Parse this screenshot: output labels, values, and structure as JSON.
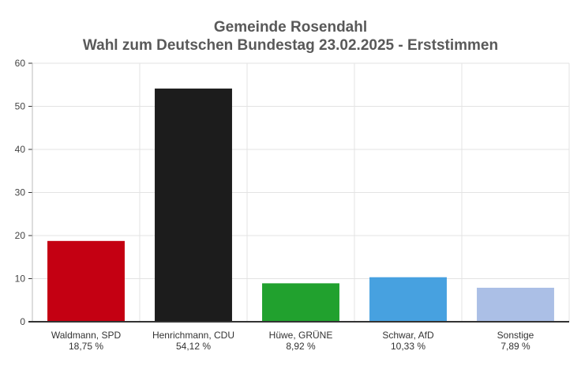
{
  "chart_data": {
    "type": "bar",
    "title": "Gemeinde Rosendahl",
    "subtitle": "Wahl zum Deutschen Bundestag 23.02.2025  - Erststimmen",
    "xlabel": "",
    "ylabel": "",
    "ylim": [
      0,
      60
    ],
    "yticks": [
      0,
      10,
      20,
      30,
      40,
      50,
      60
    ],
    "grid": true,
    "legend": "none",
    "categories": [
      {
        "label": "Waldmann, SPD",
        "value_label": "18,75 %"
      },
      {
        "label": "Henrichmann, CDU",
        "value_label": "54,12 %"
      },
      {
        "label": "Hüwe, GRÜNE",
        "value_label": "8,92 %"
      },
      {
        "label": "Schwar, AfD",
        "value_label": "10,33 %"
      },
      {
        "label": "Sonstige",
        "value_label": "7,89 %"
      }
    ],
    "values": [
      18.75,
      54.12,
      8.92,
      10.33,
      7.89
    ],
    "colors": [
      "#c40012",
      "#1c1c1c",
      "#21a12e",
      "#47a1e0",
      "#abbfe6"
    ],
    "axis_color": "#333333",
    "grid_color": "#e3e3e3"
  }
}
